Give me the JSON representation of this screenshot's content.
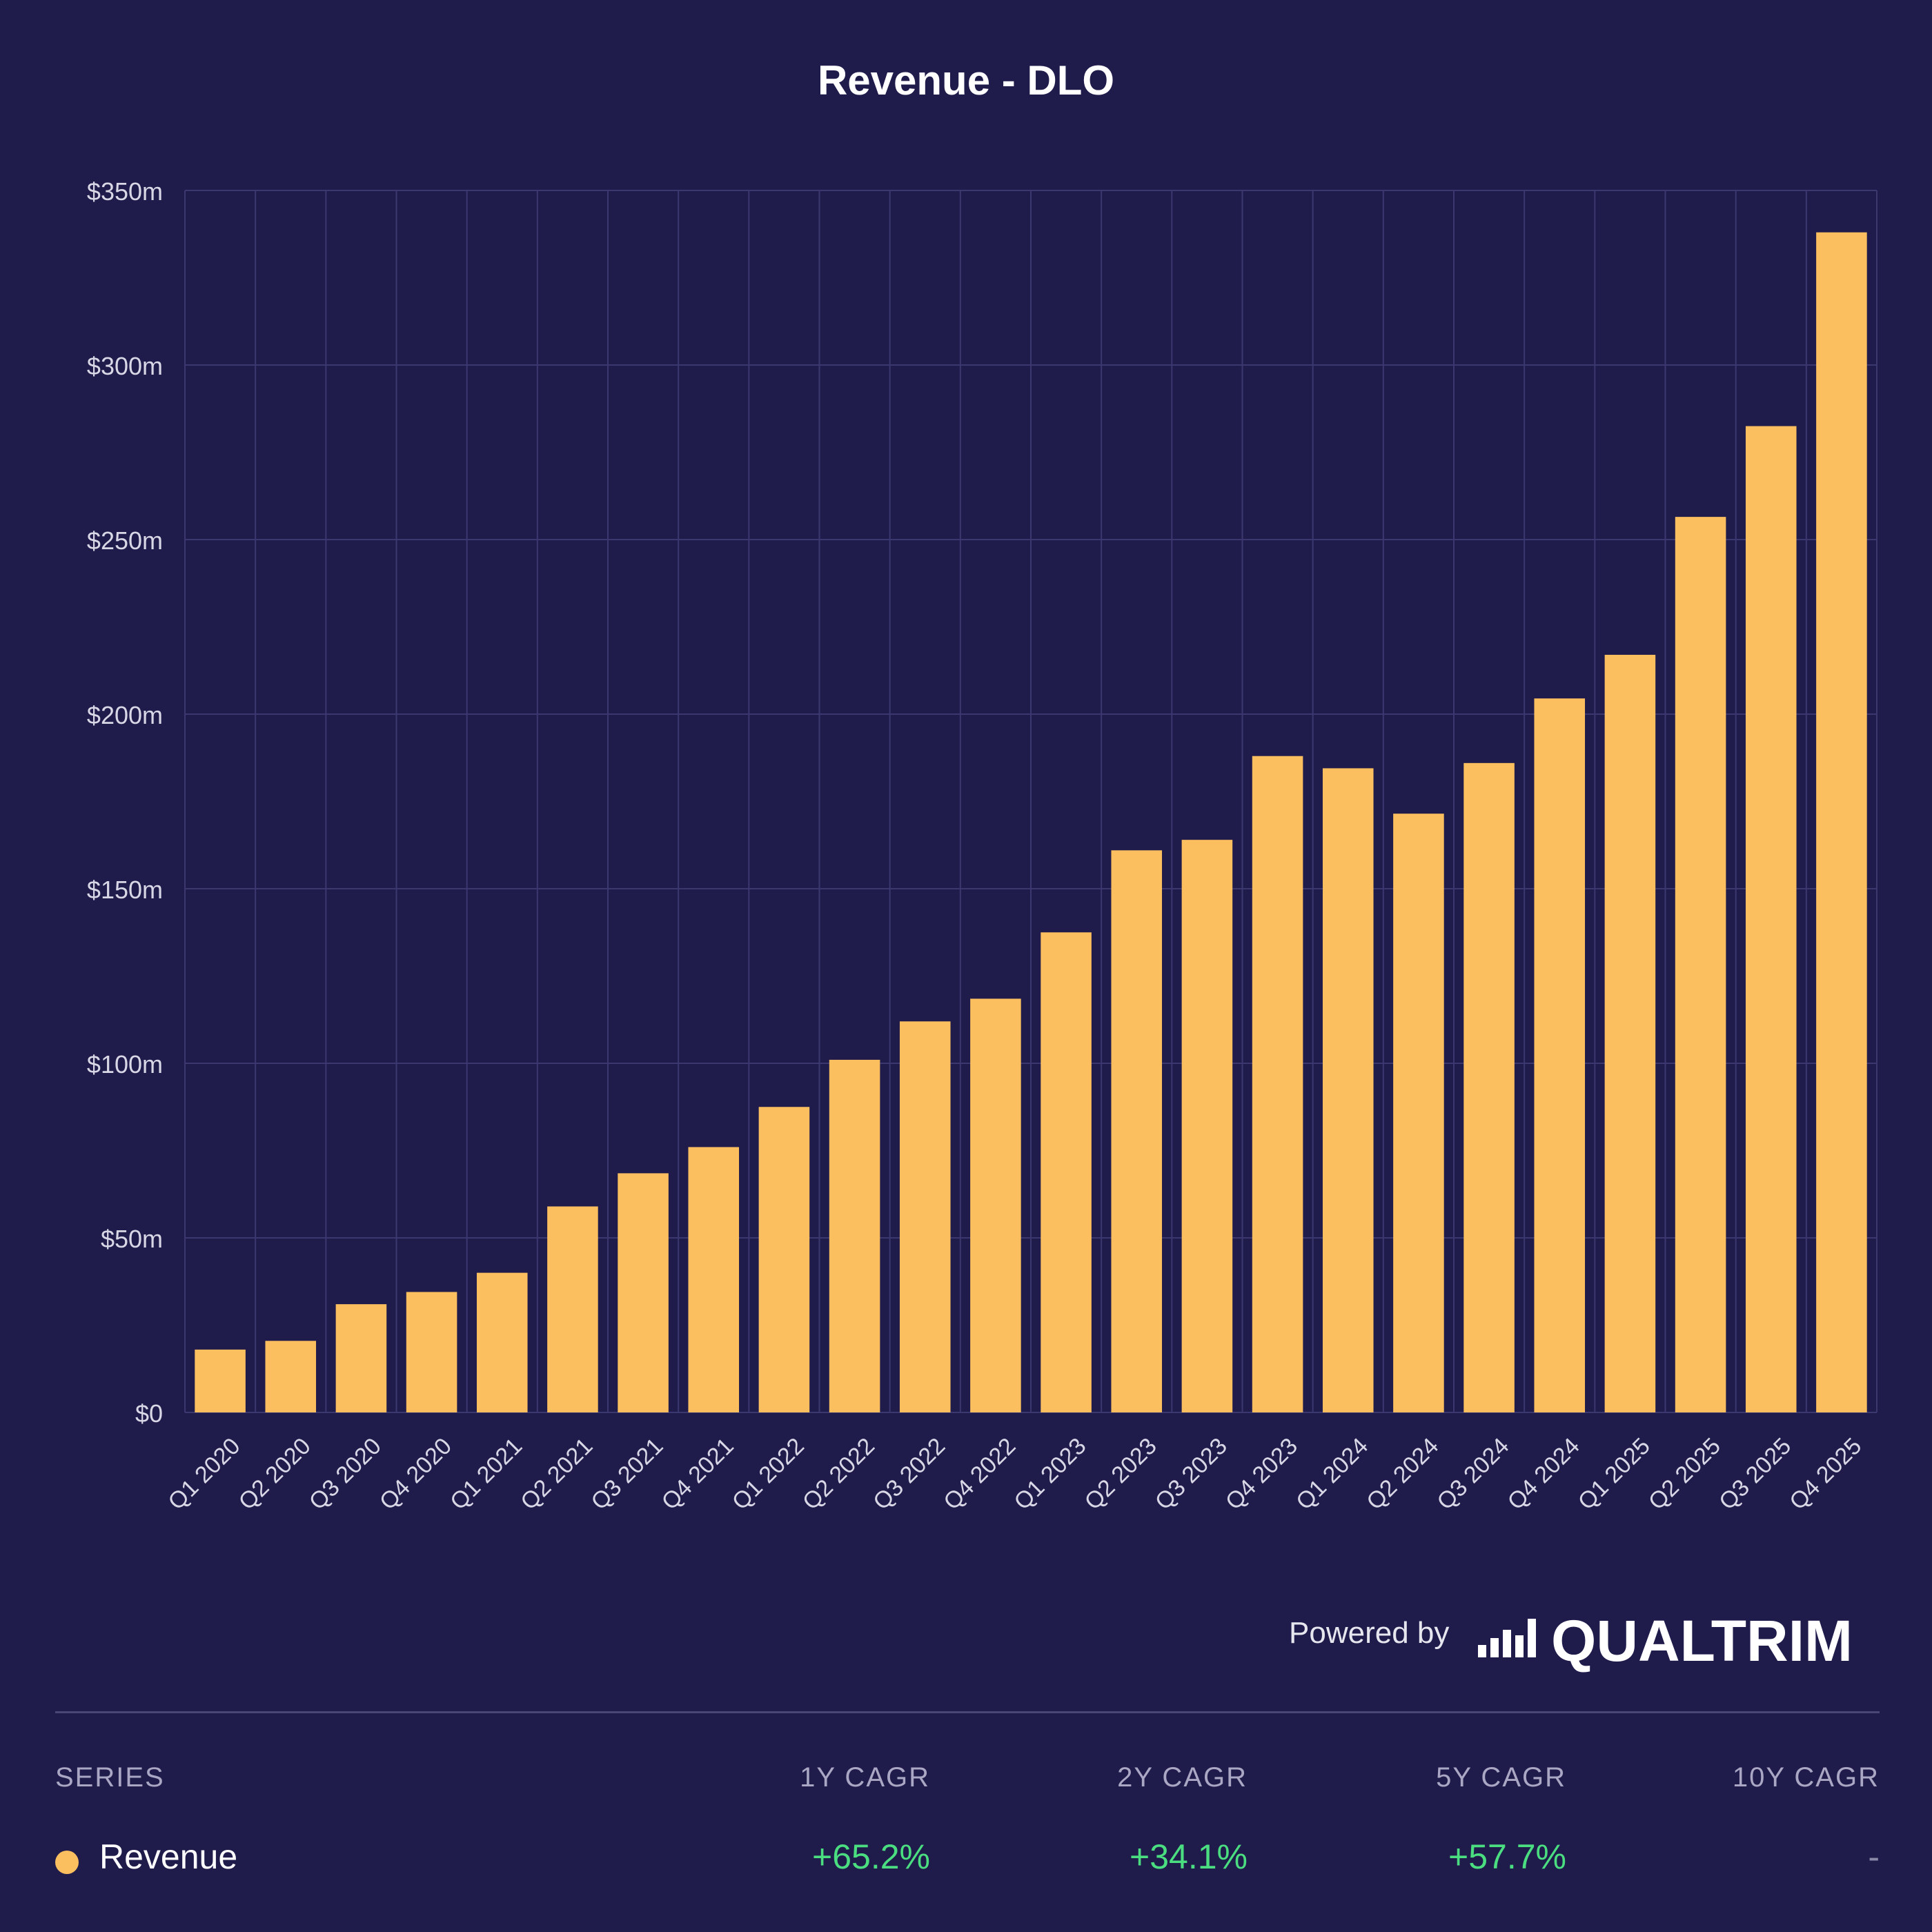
{
  "colors": {
    "background": "#1f1b4b",
    "bar": "#fbbf5f",
    "grid": "#3b3870",
    "axis_text": "#d8d7e6",
    "positive": "#4ade80"
  },
  "chart_data": {
    "type": "bar",
    "title": "Revenue - DLO",
    "xlabel": "",
    "ylabel": "",
    "ylim": [
      0,
      350
    ],
    "y_ticks": [
      0,
      50,
      100,
      150,
      200,
      250,
      300,
      350
    ],
    "y_tick_labels": [
      "$0",
      "$50m",
      "$100m",
      "$150m",
      "$200m",
      "$250m",
      "$300m",
      "$350m"
    ],
    "grid": true,
    "categories": [
      "Q1 2020",
      "Q2 2020",
      "Q3 2020",
      "Q4 2020",
      "Q1 2021",
      "Q2 2021",
      "Q3 2021",
      "Q4 2021",
      "Q1 2022",
      "Q2 2022",
      "Q3 2022",
      "Q4 2022",
      "Q1 2023",
      "Q2 2023",
      "Q3 2023",
      "Q4 2023",
      "Q1 2024",
      "Q2 2024",
      "Q3 2024",
      "Q4 2024",
      "Q1 2025",
      "Q2 2025",
      "Q3 2025",
      "Q4 2025"
    ],
    "series": [
      {
        "name": "Revenue",
        "values": [
          18,
          20.5,
          31,
          34.5,
          40,
          59,
          68.5,
          76,
          87.5,
          101,
          112,
          118.5,
          137.5,
          161,
          164,
          188,
          184.5,
          171.5,
          186,
          204.5,
          217,
          256.5,
          282.5,
          338
        ]
      }
    ]
  },
  "branding": {
    "powered_by": "Powered by",
    "brand": "QUALTRIM"
  },
  "table": {
    "headers": {
      "series": "SERIES",
      "cagr_1y": "1Y CAGR",
      "cagr_2y": "2Y CAGR",
      "cagr_5y": "5Y CAGR",
      "cagr_10y": "10Y CAGR"
    },
    "rows": [
      {
        "series": "Revenue",
        "cagr_1y": "+65.2%",
        "cagr_2y": "+34.1%",
        "cagr_5y": "+57.7%",
        "cagr_10y": "-"
      }
    ]
  }
}
